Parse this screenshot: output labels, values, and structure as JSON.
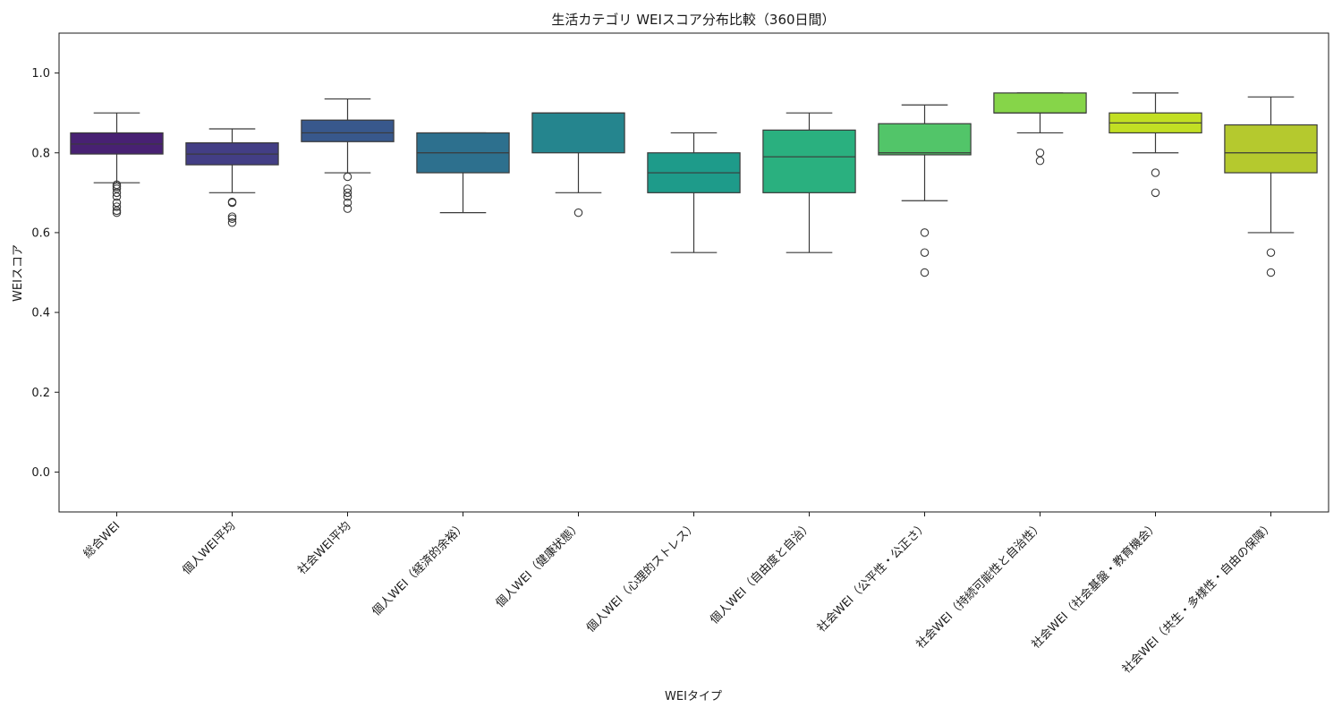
{
  "chart_data": {
    "type": "box",
    "title": "生活カテゴリ WEIスコア分布比較（360日間）",
    "xlabel": "WEIタイプ",
    "ylabel": "WEIスコア",
    "ylim": [
      -0.1,
      1.1
    ],
    "yticks": [
      "0.0",
      "0.2",
      "0.4",
      "0.6",
      "0.8",
      "1.0"
    ],
    "grid": false,
    "categories": [
      "総合WEI",
      "個人WEI平均",
      "社会WEI平均",
      "個人WEI（経済的余裕）",
      "個人WEI（健康状態）",
      "個人WEI（心理的ストレス）",
      "個人WEI（自由度と自治）",
      "社会WEI（公平性・公正さ）",
      "社会WEI（持続可能性と自治性）",
      "社会WEI（社会基盤・教育機会）",
      "社会WEI（共生・多様性・自由の保障）"
    ],
    "colors": [
      "#482173",
      "#433e85",
      "#38588c",
      "#2d708e",
      "#25858e",
      "#1e9b8a",
      "#2ab07f",
      "#52c569",
      "#86d549",
      "#c2df23",
      "#b5c92e"
    ],
    "boxes": [
      {
        "whisker_low": 0.725,
        "q1": 0.797,
        "median": 0.822,
        "q3": 0.85,
        "whisker_high": 0.9,
        "outliers": [
          0.65,
          0.655,
          0.665,
          0.675,
          0.69,
          0.7,
          0.71,
          0.715,
          0.72
        ]
      },
      {
        "whisker_low": 0.7,
        "q1": 0.77,
        "median": 0.797,
        "q3": 0.825,
        "whisker_high": 0.86,
        "outliers": [
          0.625,
          0.635,
          0.64,
          0.675,
          0.677
        ]
      },
      {
        "whisker_low": 0.75,
        "q1": 0.828,
        "median": 0.85,
        "q3": 0.882,
        "whisker_high": 0.935,
        "outliers": [
          0.66,
          0.675,
          0.69,
          0.7,
          0.71,
          0.74
        ]
      },
      {
        "whisker_low": 0.65,
        "q1": 0.75,
        "median": 0.8,
        "q3": 0.85,
        "whisker_high": 0.85,
        "outliers": []
      },
      {
        "whisker_low": 0.7,
        "q1": 0.8,
        "median": 0.9,
        "q3": 0.9,
        "whisker_high": 0.9,
        "outliers": [
          0.65
        ]
      },
      {
        "whisker_low": 0.55,
        "q1": 0.7,
        "median": 0.75,
        "q3": 0.8,
        "whisker_high": 0.85,
        "outliers": []
      },
      {
        "whisker_low": 0.55,
        "q1": 0.7,
        "median": 0.79,
        "q3": 0.857,
        "whisker_high": 0.9,
        "outliers": []
      },
      {
        "whisker_low": 0.68,
        "q1": 0.795,
        "median": 0.8,
        "q3": 0.873,
        "whisker_high": 0.92,
        "outliers": [
          0.5,
          0.55,
          0.6
        ]
      },
      {
        "whisker_low": 0.85,
        "q1": 0.9,
        "median": 0.9,
        "q3": 0.95,
        "whisker_high": 0.95,
        "outliers": [
          0.78,
          0.8
        ]
      },
      {
        "whisker_low": 0.8,
        "q1": 0.85,
        "median": 0.875,
        "q3": 0.9,
        "whisker_high": 0.95,
        "outliers": [
          0.7,
          0.75
        ]
      },
      {
        "whisker_low": 0.6,
        "q1": 0.75,
        "median": 0.8,
        "q3": 0.87,
        "whisker_high": 0.94,
        "outliers": [
          0.5,
          0.55
        ]
      }
    ]
  }
}
